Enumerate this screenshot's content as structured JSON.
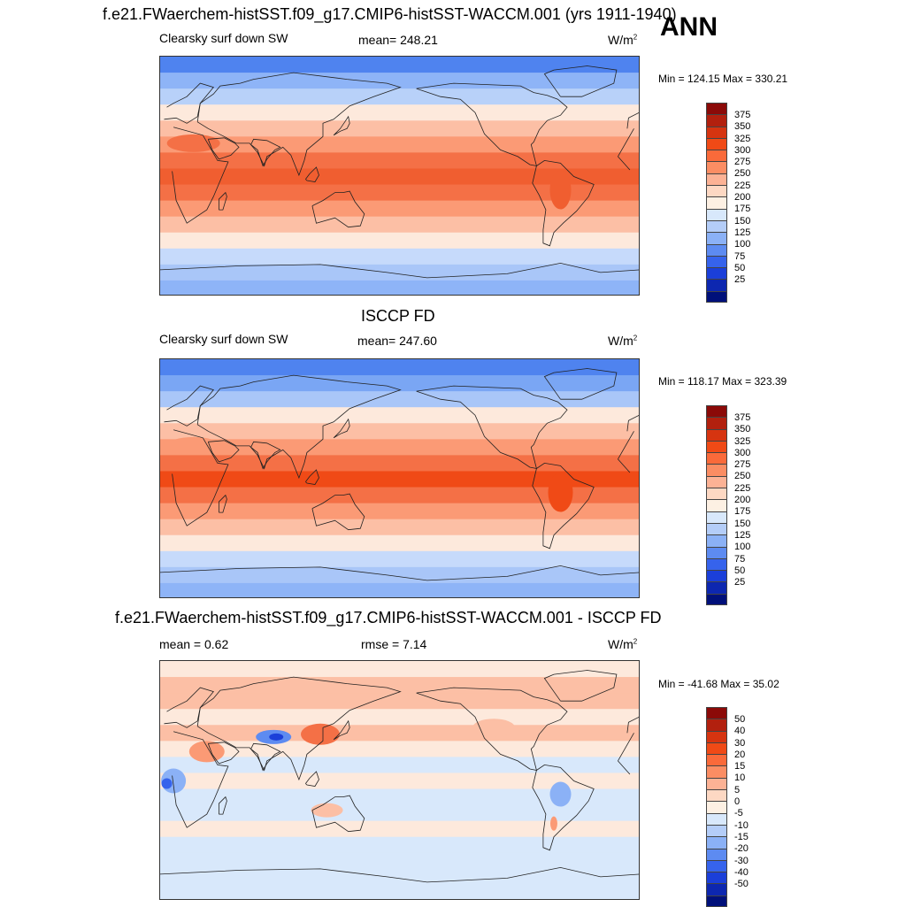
{
  "header": {
    "main_title": "f.e21.FWaerchem-histSST.f09_g17.CMIP6-histSST-WACCM.001 (yrs 1911-1940)",
    "season": "ANN"
  },
  "panels": [
    {
      "id": "model",
      "variable": "Clearsky surf down SW",
      "stat": "mean= 248.21",
      "units": "W/m",
      "units_sup": "2",
      "minmax": "Min = 124.15 Max = 330.21"
    },
    {
      "id": "obs",
      "title": "ISCCP FD",
      "variable": "Clearsky surf down SW",
      "stat": "mean= 247.60",
      "units": "W/m",
      "units_sup": "2",
      "minmax": "Min = 118.17 Max = 323.39"
    },
    {
      "id": "diff",
      "title": "f.e21.FWaerchem-histSST.f09_g17.CMIP6-histSST-WACCM.001 - ISCCP FD",
      "stat": "mean =   0.62",
      "stat2": "rmse =   7.14",
      "units": "W/m",
      "units_sup": "2",
      "minmax": "Min = -41.68 Max =  35.02"
    }
  ],
  "colorbars": {
    "absolute": {
      "labels": [
        "375",
        "350",
        "325",
        "300",
        "275",
        "250",
        "225",
        "200",
        "175",
        "150",
        "125",
        "100",
        "75",
        "50",
        "25"
      ],
      "colors": [
        "#8b0a08",
        "#b2200e",
        "#d63410",
        "#f04a16",
        "#fa6a3a",
        "#fb8d63",
        "#fcb295",
        "#fdd8c3",
        "#fdf0e3",
        "#d8e8fb",
        "#b4cdf8",
        "#8bb1f6",
        "#5d8bf1",
        "#3663ec",
        "#1b3fd9",
        "#0d27b0",
        "#00107a"
      ]
    },
    "difference": {
      "labels": [
        "50",
        "40",
        "30",
        "20",
        "15",
        "10",
        "5",
        "0",
        "-5",
        "-10",
        "-15",
        "-20",
        "-30",
        "-40",
        "-50"
      ],
      "colors": [
        "#8b0a08",
        "#b2200e",
        "#d63410",
        "#f04a16",
        "#fa6a3a",
        "#fb8d63",
        "#fcb295",
        "#fdd8c3",
        "#fdf0e3",
        "#d8e8fb",
        "#b4cdf8",
        "#8bb1f6",
        "#5d8bf1",
        "#3663ec",
        "#1b3fd9",
        "#0d27b0",
        "#00107a"
      ]
    }
  },
  "map_data": {
    "model_bands": [
      "#4f83ef",
      "#8eb4f7",
      "#b8d1f9",
      "#fde9dc",
      "#fcbfa5",
      "#fb9a75",
      "#f47046",
      "#f05e30",
      "#f47046",
      "#fb9a75",
      "#fcbfa5",
      "#fde9dc",
      "#c6dafb",
      "#a9c6f8",
      "#8eb4f7"
    ],
    "obs_bands": [
      "#4f83ef",
      "#7aa6f4",
      "#a9c6f8",
      "#fde9dc",
      "#fcbfa5",
      "#fb9a75",
      "#f47046",
      "#f04a16",
      "#f47046",
      "#fb9a75",
      "#fcbfa5",
      "#fde9dc",
      "#c6dafb",
      "#a9c6f8",
      "#8eb4f7"
    ],
    "diff_bands": [
      "#fde9dc",
      "#fcbfa5",
      "#fcbfa5",
      "#fde9dc",
      "#fcbfa5",
      "#fde9dc",
      "#d8e8fb",
      "#fde9dc",
      "#d8e8fb",
      "#d8e8fb",
      "#fde9dc",
      "#d8e8fb",
      "#d8e8fb",
      "#d8e8fb",
      "#d8e8fb"
    ]
  }
}
